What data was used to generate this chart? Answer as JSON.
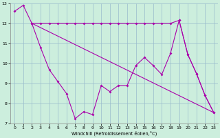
{
  "line1_x": [
    0,
    1,
    2,
    3,
    4,
    5,
    6,
    7,
    8,
    9,
    10,
    11,
    12,
    13,
    14,
    15,
    16,
    17,
    18,
    19,
    20,
    21,
    22,
    23
  ],
  "line1_y": [
    12.6,
    12.9,
    12.0,
    10.8,
    9.7,
    9.1,
    8.5,
    7.25,
    7.6,
    7.45,
    8.9,
    8.6,
    8.9,
    8.9,
    9.9,
    10.3,
    9.9,
    9.45,
    10.5,
    12.15,
    10.45,
    9.5,
    8.4,
    7.55
  ],
  "line2_x": [
    2,
    3,
    4,
    5,
    6,
    7,
    8,
    9,
    10,
    11,
    12,
    13,
    14,
    15,
    16,
    17,
    18,
    19,
    20,
    21,
    22,
    23
  ],
  "line2_y": [
    12.0,
    12.0,
    12.0,
    12.0,
    12.0,
    12.0,
    12.0,
    12.0,
    12.0,
    12.0,
    12.0,
    12.0,
    12.0,
    12.0,
    12.0,
    12.0,
    12.0,
    12.15,
    10.45,
    9.5,
    8.4,
    7.55
  ],
  "line3_x": [
    2,
    23
  ],
  "line3_y": [
    12.0,
    7.55
  ],
  "line_color": "#aa00aa",
  "bg_color": "#cceedd",
  "grid_color": "#99bbcc",
  "xlabel": "Windchill (Refroidissement éolien,°C)",
  "ylim": [
    7.0,
    13.0
  ],
  "xlim": [
    -0.5,
    23.5
  ],
  "yticks": [
    7,
    8,
    9,
    10,
    11,
    12,
    13
  ],
  "xticks": [
    0,
    1,
    2,
    3,
    4,
    5,
    6,
    7,
    8,
    9,
    10,
    11,
    12,
    13,
    14,
    15,
    16,
    17,
    18,
    19,
    20,
    21,
    22,
    23
  ]
}
